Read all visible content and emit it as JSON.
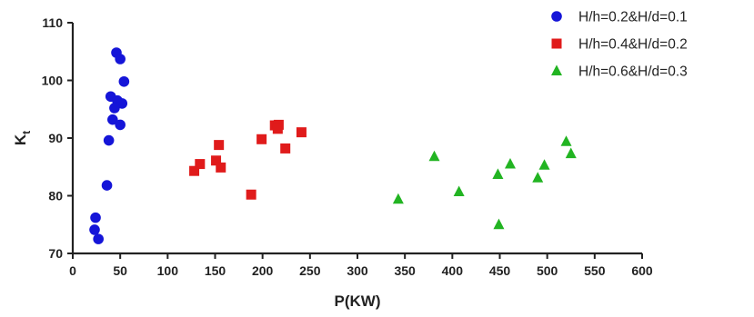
{
  "chart_data": {
    "type": "scatter",
    "xlabel": "P(KW)",
    "ylabel": {
      "main": "K",
      "sub": "t"
    },
    "xlim": [
      0,
      600
    ],
    "ylim": [
      70,
      110
    ],
    "xticks": [
      "0",
      "50",
      "100",
      "150",
      "200",
      "250",
      "300",
      "350",
      "400",
      "450",
      "500",
      "550",
      "600"
    ],
    "yticks": [
      "70",
      "80",
      "90",
      "100",
      "110"
    ],
    "grid": false,
    "legend_position": "top-right",
    "series": [
      {
        "name": "H/h=0.2&H/d=0.1",
        "marker": "circle",
        "color": "#1515d8",
        "points": [
          [
            46,
            104.8
          ],
          [
            50,
            103.7
          ],
          [
            54,
            99.8
          ],
          [
            40,
            97.2
          ],
          [
            47,
            96.5
          ],
          [
            52,
            96.0
          ],
          [
            44,
            95.2
          ],
          [
            42,
            93.2
          ],
          [
            50,
            92.3
          ],
          [
            38,
            89.6
          ],
          [
            36,
            81.8
          ],
          [
            24,
            76.2
          ],
          [
            23,
            74.1
          ],
          [
            27,
            72.5
          ]
        ]
      },
      {
        "name": "H/h=0.4&H/d=0.2",
        "marker": "square",
        "color": "#e01b1b",
        "points": [
          [
            128,
            84.3
          ],
          [
            134,
            85.5
          ],
          [
            151,
            86.1
          ],
          [
            154,
            88.8
          ],
          [
            156,
            84.9
          ],
          [
            188,
            80.2
          ],
          [
            199,
            89.8
          ],
          [
            213,
            92.2
          ],
          [
            217,
            92.3
          ],
          [
            216,
            91.6
          ],
          [
            224,
            88.2
          ],
          [
            241,
            91.0
          ]
        ]
      },
      {
        "name": "H/h=0.6&H/d=0.3",
        "marker": "triangle",
        "color": "#22b422",
        "points": [
          [
            343,
            79.4
          ],
          [
            381,
            86.8
          ],
          [
            407,
            80.7
          ],
          [
            448,
            83.7
          ],
          [
            449,
            75.0
          ],
          [
            461,
            85.5
          ],
          [
            490,
            83.1
          ],
          [
            497,
            85.3
          ],
          [
            520,
            89.4
          ],
          [
            525,
            87.3
          ]
        ]
      }
    ]
  }
}
